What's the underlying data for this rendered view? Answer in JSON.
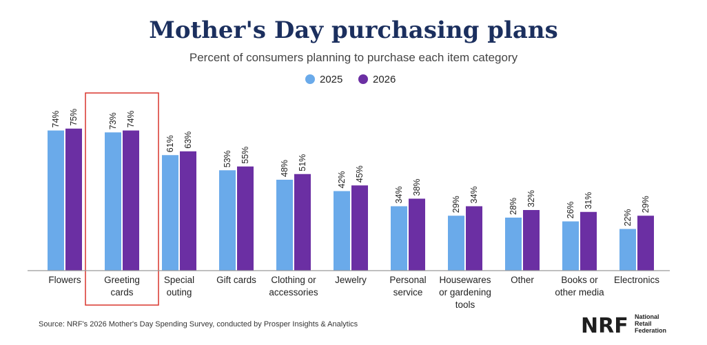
{
  "colors": {
    "series_2025": "#6aaaea",
    "series_2026": "#6b2fa3",
    "title": "#1b2f5e",
    "highlight_box": "#d9342b",
    "axis": "#999999"
  },
  "chart_data": {
    "type": "bar",
    "title": "Mother's Day purchasing plans",
    "subtitle": "Percent of consumers planning to purchase each item category",
    "ylim": [
      0,
      100
    ],
    "grid": false,
    "legend_position": "top-center",
    "value_suffix": "%",
    "highlighted_category": "Greeting cards",
    "categories": [
      [
        "Flowers"
      ],
      [
        "Greeting",
        "cards"
      ],
      [
        "Special",
        "outing"
      ],
      [
        "Gift cards"
      ],
      [
        "Clothing or",
        "accessories"
      ],
      [
        "Jewelry"
      ],
      [
        "Personal",
        "service"
      ],
      [
        "Housewares",
        "or gardening",
        "tools"
      ],
      [
        "Other"
      ],
      [
        "Books or",
        "other media"
      ],
      [
        "Electronics"
      ]
    ],
    "series": [
      {
        "name": "2025",
        "values": [
          74,
          73,
          61,
          53,
          48,
          42,
          34,
          29,
          28,
          26,
          22
        ]
      },
      {
        "name": "2026",
        "values": [
          75,
          74,
          63,
          55,
          51,
          45,
          38,
          34,
          32,
          31,
          29
        ]
      }
    ]
  },
  "source": "Source: NRF's 2026 Mother's Day Spending Survey, conducted by Prosper Insights & Analytics",
  "logo": {
    "mark": "NRF",
    "lines": [
      "National",
      "Retail",
      "Federation"
    ]
  }
}
